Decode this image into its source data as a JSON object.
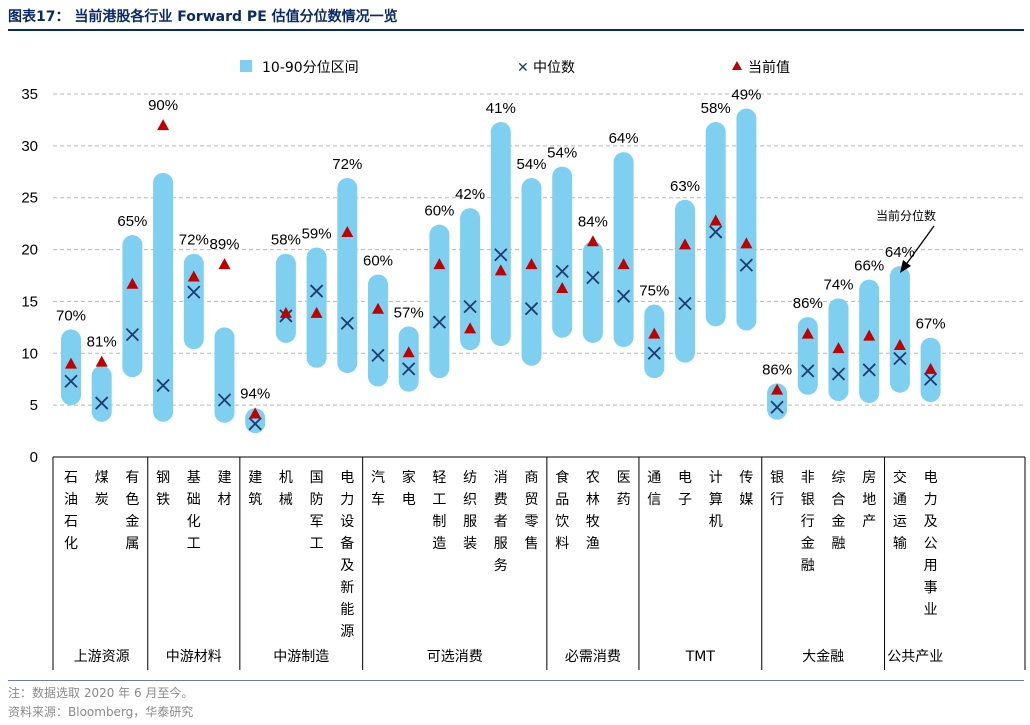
{
  "figure_title": "图表17：  当前港股各行业 Forward PE 估值分位数情况一览",
  "note": "注：数据选取 2020 年 6 月至今。",
  "source": "资料来源：Bloomberg，华泰研究",
  "colors": {
    "range": "#7fd0f0",
    "median": "#1f3a6e",
    "current": "#c00000",
    "title": "#0a2a66"
  },
  "chart_data": {
    "type": "range-bar",
    "ylim": [
      0,
      35
    ],
    "yticks": [
      "0",
      "5",
      "10",
      "15",
      "20",
      "25",
      "30",
      "35"
    ],
    "grid": true,
    "legend": {
      "range_label": "10-90分位区间",
      "median_label": "中位数",
      "current_label": "当前值",
      "placement": "top"
    },
    "annotation": {
      "text": "当前分位数",
      "target_index": 26
    },
    "sectors": [
      {
        "name": "石油石化",
        "low": 5,
        "high": 12.3,
        "median": 7.3,
        "current": 9.0,
        "pct": "70%",
        "group": 0
      },
      {
        "name": "煤炭",
        "low": 3.4,
        "high": 8.8,
        "median": 5.2,
        "current": 9.2,
        "pct": "81%",
        "group": 0
      },
      {
        "name": "有色金属",
        "low": 7.7,
        "high": 21.4,
        "median": 11.8,
        "current": 16.7,
        "pct": "65%",
        "group": 0
      },
      {
        "name": "钢铁",
        "low": 3.4,
        "high": 27.4,
        "median": 6.9,
        "current": 32.0,
        "pct": "90%",
        "group": 1
      },
      {
        "name": "基础化工",
        "low": 10.4,
        "high": 19.6,
        "median": 15.9,
        "current": 17.4,
        "pct": "72%",
        "group": 1
      },
      {
        "name": "建材",
        "low": 3.3,
        "high": 12.5,
        "median": 5.5,
        "current": 18.6,
        "pct": "89%",
        "group": 1
      },
      {
        "name": "建筑",
        "low": 2.3,
        "high": 4.7,
        "median": 3.2,
        "current": 4.2,
        "pct": "94%",
        "group": 2
      },
      {
        "name": "机械",
        "low": 11.0,
        "high": 19.6,
        "median": 13.6,
        "current": 13.9,
        "pct": "58%",
        "group": 2
      },
      {
        "name": "国防军工",
        "low": 8.6,
        "high": 20.2,
        "median": 16.0,
        "current": 13.9,
        "pct": "59%",
        "group": 2
      },
      {
        "name": "电力设备及新能源",
        "low": 8.1,
        "high": 26.9,
        "median": 12.9,
        "current": 21.7,
        "pct": "72%",
        "group": 2
      },
      {
        "name": "汽车",
        "low": 6.8,
        "high": 17.6,
        "median": 9.8,
        "current": 14.3,
        "pct": "60%",
        "group": 3
      },
      {
        "name": "家电",
        "low": 6.3,
        "high": 12.6,
        "median": 8.5,
        "current": 10.1,
        "pct": "57%",
        "group": 3
      },
      {
        "name": "轻工制造",
        "low": 7.6,
        "high": 22.4,
        "median": 13.0,
        "current": 18.6,
        "pct": "60%",
        "group": 3
      },
      {
        "name": "纺织服装",
        "low": 10.3,
        "high": 24.0,
        "median": 14.5,
        "current": 12.4,
        "pct": "42%",
        "group": 3
      },
      {
        "name": "消费者服务",
        "low": 10.7,
        "high": 32.3,
        "median": 19.5,
        "current": 18.0,
        "pct": "41%",
        "group": 3
      },
      {
        "name": "商贸零售",
        "low": 8.8,
        "high": 26.9,
        "median": 14.3,
        "current": 18.6,
        "pct": "54%",
        "group": 3
      },
      {
        "name": "食品饮料",
        "low": 11.5,
        "high": 28.0,
        "median": 17.9,
        "current": 16.3,
        "pct": "54%",
        "group": 4
      },
      {
        "name": "农林牧渔",
        "low": 11.0,
        "high": 20.8,
        "median": 17.3,
        "current": 20.8,
        "pct": "84%",
        "group": 4
      },
      {
        "name": "医药",
        "low": 10.6,
        "high": 29.4,
        "median": 15.5,
        "current": 18.6,
        "pct": "64%",
        "group": 4
      },
      {
        "name": "通信",
        "low": 7.6,
        "high": 14.7,
        "median": 10.0,
        "current": 11.9,
        "pct": "75%",
        "group": 5
      },
      {
        "name": "电子",
        "low": 9.1,
        "high": 24.8,
        "median": 14.8,
        "current": 20.5,
        "pct": "63%",
        "group": 5
      },
      {
        "name": "计算机",
        "low": 12.6,
        "high": 32.3,
        "median": 21.7,
        "current": 22.8,
        "pct": "58%",
        "group": 5
      },
      {
        "name": "传媒",
        "low": 12.2,
        "high": 33.6,
        "median": 18.5,
        "current": 20.6,
        "pct": "49%",
        "group": 5
      },
      {
        "name": "银行",
        "low": 3.6,
        "high": 7.1,
        "median": 4.8,
        "current": 6.5,
        "pct": "86%",
        "group": 6
      },
      {
        "name": "非银行金融",
        "low": 6.0,
        "high": 13.5,
        "median": 8.3,
        "current": 11.9,
        "pct": "86%",
        "group": 6
      },
      {
        "name": "综合金融",
        "low": 5.4,
        "high": 15.3,
        "median": 8.0,
        "current": 10.5,
        "pct": "74%",
        "group": 6
      },
      {
        "name": "房地产",
        "low": 5.2,
        "high": 17.1,
        "median": 8.4,
        "current": 11.7,
        "pct": "66%",
        "group": 6
      },
      {
        "name": "交通运输",
        "low": 6.2,
        "high": 18.4,
        "median": 9.5,
        "current": 10.8,
        "pct": "64%",
        "group": 7
      },
      {
        "name": "电力及公用事业",
        "low": 5.3,
        "high": 11.5,
        "median": 7.5,
        "current": 8.5,
        "pct": "67%",
        "group": 7
      }
    ],
    "groups": [
      "上游资源",
      "中游材料",
      "中游制造",
      "可选消费",
      "必需消费",
      "TMT",
      "大金融",
      "公共产业"
    ]
  }
}
